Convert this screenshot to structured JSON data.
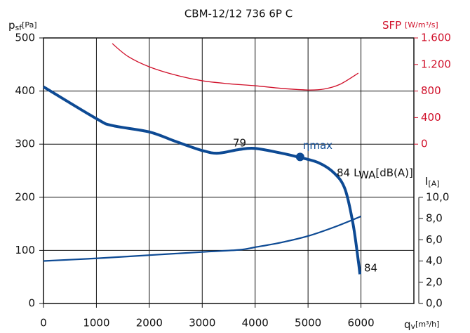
{
  "chart_data": {
    "type": "line",
    "title": "CBM-12/12 736 6P C",
    "y_label": {
      "symbol": "p",
      "sub": "sf",
      "unit": "[Pa]"
    },
    "y2_label": {
      "symbol": "SFP",
      "unit": "[W/m³/s]"
    },
    "y3_label": {
      "symbol": "I",
      "unit": "[A]"
    },
    "x_label": {
      "symbol": "q",
      "sub": "v",
      "unit": "[m³/h]"
    },
    "xlim": [
      0,
      7000
    ],
    "xticks": [
      0,
      1000,
      2000,
      3000,
      4000,
      5000,
      6000
    ],
    "ylim": [
      0,
      500
    ],
    "yticks": [
      0,
      100,
      200,
      300,
      400,
      500
    ],
    "y2lim": [
      -2400,
      1600
    ],
    "y2ticks": [
      {
        "value": 1600,
        "label": "1.600"
      },
      {
        "value": 1200,
        "label": "1.200"
      },
      800,
      400,
      0
    ],
    "y3lim": [
      0,
      25
    ],
    "y3ticks": [
      {
        "value": 10,
        "label": "10,0"
      },
      {
        "value": 8,
        "label": "8,0"
      },
      {
        "value": 6,
        "label": "6,0"
      },
      {
        "value": 4,
        "label": "4,0"
      },
      {
        "value": 2,
        "label": "2,0"
      },
      {
        "value": 0,
        "label": "0,0"
      }
    ],
    "grid": true,
    "series": [
      {
        "name": "pressure",
        "color": "#0d4a94",
        "axis": "y",
        "x": [
          0,
          1000,
          1300,
          2000,
          2500,
          3000,
          3300,
          3700,
          4000,
          4500,
          4800,
          5200,
          5500,
          5700,
          5850,
          5950,
          5980
        ],
        "values": [
          408,
          348,
          335,
          323,
          305,
          288,
          283,
          290,
          292,
          283,
          276,
          265,
          245,
          215,
          150,
          80,
          55
        ]
      },
      {
        "name": "current",
        "color": "#0d4a94",
        "axis": "y3",
        "x": [
          0,
          1000,
          2000,
          3000,
          3700,
          4000,
          4500,
          5000,
          5500,
          6000
        ],
        "values": [
          4.0,
          4.25,
          4.55,
          4.85,
          5.05,
          5.3,
          5.75,
          6.35,
          7.2,
          8.2
        ]
      },
      {
        "name": "SFP",
        "color": "#d0102a",
        "axis": "y2",
        "x": [
          1300,
          1600,
          2000,
          2500,
          3000,
          3500,
          4000,
          4500,
          5000,
          5300,
          5600,
          5950
        ],
        "values": [
          1515,
          1320,
          1165,
          1040,
          955,
          910,
          880,
          840,
          816,
          830,
          900,
          1070
        ]
      }
    ],
    "eta_max": {
      "label": "ηmax",
      "x": 4850,
      "y": 276
    },
    "annotations": [
      "79",
      "84",
      "84"
    ],
    "lwa_label": {
      "prefix": "L",
      "sub": "WA",
      "unit": "[dB(A)]"
    }
  }
}
